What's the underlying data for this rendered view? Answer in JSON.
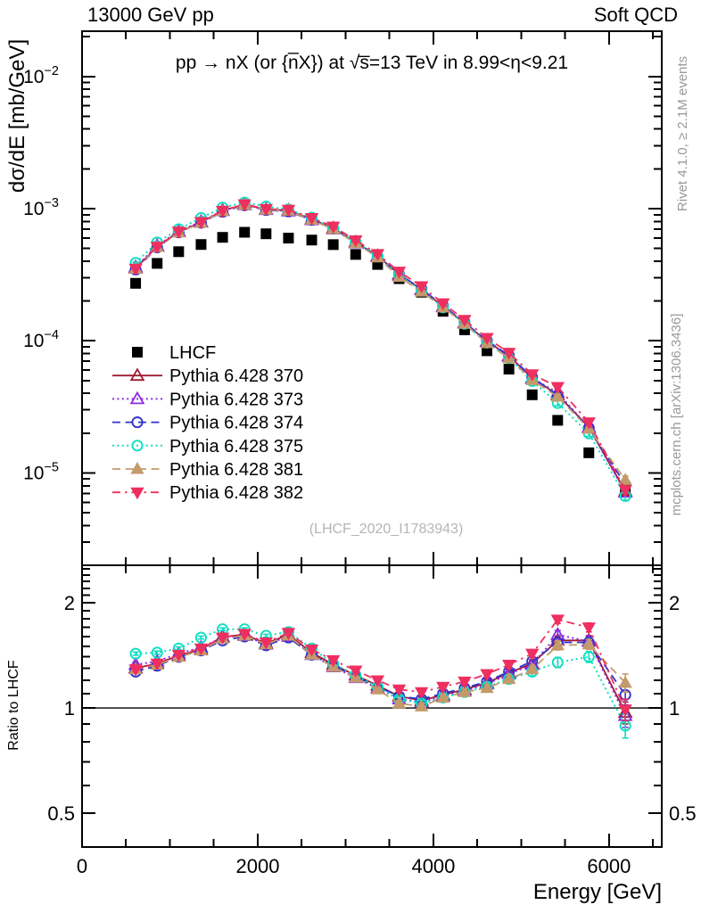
{
  "header": {
    "left": "13000 GeV pp",
    "right": "Soft QCD"
  },
  "plot_title": "pp → nX (or {n̅X}) at √s̅=13 TeV in 8.99<η<9.21",
  "watermark": "(LHCF_2020_I1783943)",
  "side_notes": {
    "top_right": "Rivet 4.1.0, ≥ 2.1M events",
    "bottom_right": "mcplots.cern.ch [arXiv:1306.3436]"
  },
  "axes": {
    "x_label": "Energy [GeV]",
    "y_label_main": "dσ/dE [mb/GeV]",
    "y_label_ratio": "Ratio to LHCF",
    "x_range": [
      0,
      6600
    ],
    "x_major_ticks": [
      0,
      2000,
      4000,
      6000
    ],
    "x_minor_step": 500,
    "y_range_main": [
      2e-06,
      0.022
    ],
    "y_main_label_exponents": [
      -2,
      -3,
      -4,
      -5
    ],
    "y_range_ratio": [
      0.4,
      2.56
    ],
    "y_ratio_tick_labels": [
      "2",
      "1",
      "0.5"
    ],
    "y_ratio_tick_values": [
      2,
      1,
      0.5
    ]
  },
  "chart_data": {
    "type": "line",
    "title": "pp → nX (or n̅X) at √s=13 TeV in 8.99<η<9.21",
    "xlabel": "Energy [GeV]",
    "ylabel": "dσ/dE [mb/GeV]",
    "x": [
      610,
      855,
      1100,
      1355,
      1600,
      1850,
      2095,
      2350,
      2615,
      2860,
      3115,
      3365,
      3610,
      3865,
      4110,
      4355,
      4610,
      4860,
      5125,
      5415,
      5770,
      6185
    ],
    "reference": {
      "label": "LHCF",
      "color": "#000000",
      "marker": "filled-square",
      "dsigma_dE": [
        0.000272,
        0.000385,
        0.000472,
        0.000535,
        0.000606,
        0.000662,
        0.000645,
        0.000598,
        0.000578,
        0.000534,
        0.00045,
        0.000378,
        0.000295,
        0.000233,
        0.000167,
        0.000121,
        8.4e-05,
        6.1e-05,
        3.9e-05,
        2.5e-05,
        1.42e-05,
        7.5e-06
      ]
    },
    "series": [
      {
        "label": "Pythia 6.428 370",
        "color": "#9d1b30",
        "line": "solid",
        "marker": "open-triangle-up",
        "ratio_to_lhcf": [
          1.3,
          1.34,
          1.41,
          1.47,
          1.6,
          1.62,
          1.53,
          1.62,
          1.44,
          1.33,
          1.24,
          1.16,
          1.08,
          1.05,
          1.09,
          1.13,
          1.18,
          1.26,
          1.34,
          1.56,
          1.56,
          0.97
        ]
      },
      {
        "label": "Pythia 6.428 373",
        "color": "#8a2be2",
        "line": "dotted",
        "marker": "open-triangle-up",
        "ratio_to_lhcf": [
          1.33,
          1.36,
          1.43,
          1.49,
          1.59,
          1.61,
          1.52,
          1.6,
          1.42,
          1.31,
          1.22,
          1.14,
          1.06,
          1.04,
          1.08,
          1.12,
          1.17,
          1.25,
          1.33,
          1.62,
          1.55,
          0.95
        ]
      },
      {
        "label": "Pythia 6.428 374",
        "color": "#3333cc",
        "line": "dashed",
        "marker": "open-circle",
        "ratio_to_lhcf": [
          1.27,
          1.32,
          1.4,
          1.46,
          1.56,
          1.6,
          1.51,
          1.59,
          1.42,
          1.32,
          1.23,
          1.15,
          1.08,
          1.06,
          1.1,
          1.14,
          1.19,
          1.27,
          1.36,
          1.54,
          1.54,
          1.09
        ]
      },
      {
        "label": "Pythia 6.428 375",
        "color": "#0edec0",
        "line": "dotted",
        "marker": "open-circle",
        "ratio_to_lhcf": [
          1.43,
          1.44,
          1.48,
          1.59,
          1.68,
          1.68,
          1.61,
          1.65,
          1.48,
          1.34,
          1.24,
          1.15,
          1.06,
          1.03,
          1.07,
          1.11,
          1.15,
          1.21,
          1.27,
          1.35,
          1.4,
          0.89
        ]
      },
      {
        "label": "Pythia 6.428 381",
        "color": "#c49a6b",
        "line": "dashed",
        "marker": "filled-triangle-up",
        "ratio_to_lhcf": [
          1.29,
          1.33,
          1.4,
          1.46,
          1.58,
          1.61,
          1.52,
          1.61,
          1.42,
          1.31,
          1.22,
          1.13,
          1.03,
          1.01,
          1.07,
          1.11,
          1.14,
          1.21,
          1.29,
          1.51,
          1.52,
          1.18
        ]
      },
      {
        "label": "Pythia 6.428 382",
        "color": "#ee2f5f",
        "line": "dashdot",
        "marker": "filled-triangle-down",
        "ratio_to_lhcf": [
          1.29,
          1.34,
          1.42,
          1.48,
          1.59,
          1.63,
          1.54,
          1.64,
          1.47,
          1.37,
          1.28,
          1.2,
          1.13,
          1.11,
          1.15,
          1.19,
          1.25,
          1.33,
          1.43,
          1.79,
          1.7,
          0.99
        ]
      }
    ],
    "ratio_err": [
      0.015,
      0.015,
      0.015,
      0.015,
      0.015,
      0.015,
      0.015,
      0.02,
      0.02,
      0.02,
      0.02,
      0.02,
      0.02,
      0.02,
      0.02,
      0.025,
      0.025,
      0.03,
      0.035,
      0.045,
      0.05,
      0.07
    ],
    "note": "Main-panel MC value = LHCF dsigma_dE × ratio_to_lhcf; ratio panel is MC/LHCF on log scale"
  },
  "style_colors": {
    "frame": "#000000",
    "text": "#000000",
    "side_note_gray": "#999999",
    "watermark_gray": "#b5b5b5"
  }
}
